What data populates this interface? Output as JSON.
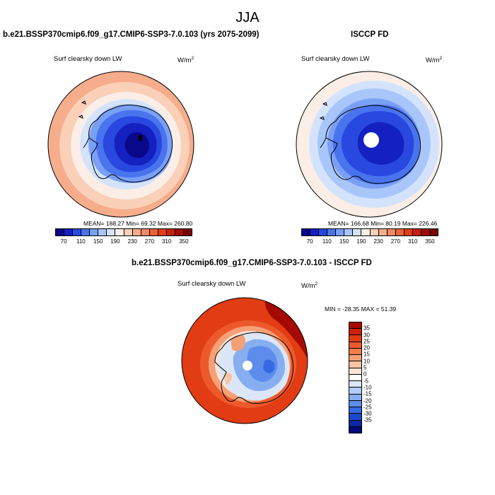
{
  "season": "JJA",
  "panels": {
    "model": {
      "title": "b.e21.BSSP370cmip6.f09_g17.CMIP6-SSP3-7.0.103 (yrs 2075-2099)",
      "variable": "Surf clearsky down LW",
      "units_base": "W/m",
      "units_exp": "2",
      "stats": "MEAN= 188.27   Min=  69.32   Max= 260.80"
    },
    "obs": {
      "title": "ISCCP FD",
      "variable": "Surf clearsky down LW",
      "units_base": "W/m",
      "units_exp": "2",
      "stats": "MEAN= 166.68   Min=  80.19   Max= 226.46"
    },
    "diff": {
      "title": "b.e21.BSSP370cmip6.f09_g17.CMIP6-SSP3-7.0.103 - ISCCP FD",
      "variable": "Surf clearsky down LW",
      "units_base": "W/m",
      "units_exp": "2",
      "stats": "MIN = -28.35 MAX =  51.39"
    }
  },
  "abs_colorbar": {
    "tick_labels": [
      "70",
      "110",
      "150",
      "190",
      "230",
      "270",
      "310",
      "350"
    ],
    "colors": [
      "#08088a",
      "#1420c0",
      "#2848e0",
      "#4a74ee",
      "#7aa0f6",
      "#a9c6fa",
      "#d4e3fc",
      "#fbeee6",
      "#fbd0b8",
      "#f6ad8c",
      "#f08862",
      "#ea6238",
      "#e13d18",
      "#c8200a",
      "#a00d05",
      "#7a0000"
    ]
  },
  "diff_colorbar": {
    "tick_labels": [
      "35",
      "30",
      "25",
      "20",
      "15",
      "10",
      "5",
      "0",
      "-5",
      "-10",
      "-15",
      "-20",
      "-25",
      "-30",
      "-35"
    ],
    "colors": [
      "#a40a02",
      "#cc2208",
      "#e23c14",
      "#ec5a2c",
      "#f27c4c",
      "#f6a078",
      "#f9c3a4",
      "#fce4d6",
      "#ffffff",
      "#dbe7f8",
      "#b2cdf6",
      "#88aef2",
      "#5d8cec",
      "#356ae2",
      "#1848cc",
      "#0c28a6",
      "#040878"
    ]
  }
}
